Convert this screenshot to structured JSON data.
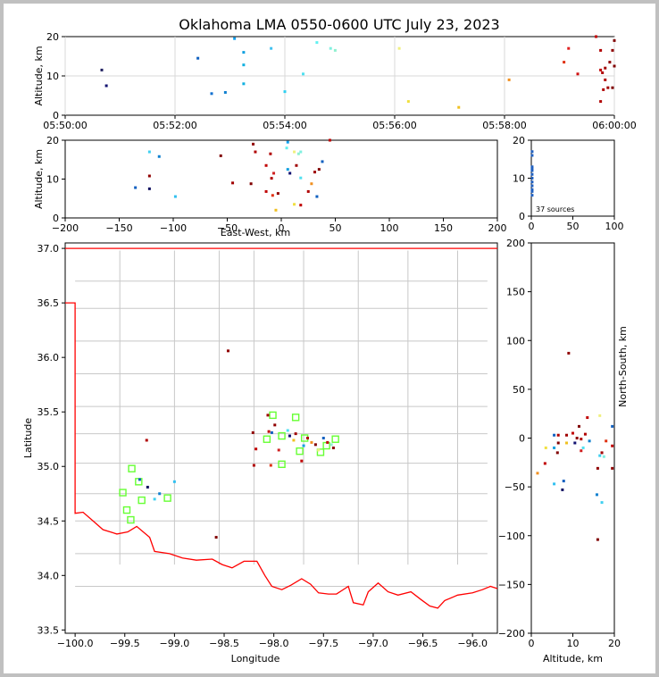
{
  "title": "Oklahoma LMA 0550-0600 UTC July 23, 2023",
  "colors": {
    "boundary": "#ff0000",
    "county": "#c8c8c8",
    "station": "#66ff33"
  },
  "chart_data": [
    {
      "id": "time_altitude",
      "type": "scatter",
      "ylabel": "Altitude, km",
      "ylim": [
        0,
        20
      ],
      "xlim": [
        "05:50:00",
        "06:00:00"
      ],
      "xticks": [
        "05:50:00",
        "05:52:00",
        "05:54:00",
        "05:56:00",
        "05:58:00",
        "06:00:00"
      ],
      "yticks": [
        "0",
        "10",
        "20"
      ],
      "points": [
        {
          "t": "05:50:40",
          "alt": 11.5,
          "color": "#202060"
        },
        {
          "t": "05:50:45",
          "alt": 7.5,
          "color": "#101070"
        },
        {
          "t": "05:52:25",
          "alt": 14.5,
          "color": "#1060c0"
        },
        {
          "t": "05:52:40",
          "alt": 5.5,
          "color": "#1070d0"
        },
        {
          "t": "05:52:55",
          "alt": 5.8,
          "color": "#1080d0"
        },
        {
          "t": "05:53:05",
          "alt": 19.5,
          "color": "#10a0f0"
        },
        {
          "t": "05:53:15",
          "alt": 16,
          "color": "#10a0e0"
        },
        {
          "t": "05:53:15",
          "alt": 12.8,
          "color": "#10b0e0"
        },
        {
          "t": "05:53:15",
          "alt": 8,
          "color": "#10b0e0"
        },
        {
          "t": "05:53:45",
          "alt": 17,
          "color": "#40c0f0"
        },
        {
          "t": "05:54:00",
          "alt": 6,
          "color": "#30d0f0"
        },
        {
          "t": "05:54:20",
          "alt": 10.5,
          "color": "#50e0f0"
        },
        {
          "t": "05:54:35",
          "alt": 18.5,
          "color": "#60f0f0"
        },
        {
          "t": "05:54:50",
          "alt": 17,
          "color": "#80f0e0"
        },
        {
          "t": "05:54:55",
          "alt": 16.5,
          "color": "#90f0d0"
        },
        {
          "t": "05:56:05",
          "alt": 17,
          "color": "#f0f080"
        },
        {
          "t": "05:56:15",
          "alt": 3.5,
          "color": "#f0e040"
        },
        {
          "t": "05:57:10",
          "alt": 2,
          "color": "#f0c020"
        },
        {
          "t": "05:58:05",
          "alt": 9,
          "color": "#f09020"
        },
        {
          "t": "05:59:05",
          "alt": 13.5,
          "color": "#e03010"
        },
        {
          "t": "05:59:10",
          "alt": 17,
          "color": "#e02020"
        },
        {
          "t": "05:59:20",
          "alt": 10.5,
          "color": "#d01010"
        },
        {
          "t": "05:59:40",
          "alt": 20,
          "color": "#c00000"
        },
        {
          "t": "05:59:45",
          "alt": 16.5,
          "color": "#b00000"
        },
        {
          "t": "05:59:45",
          "alt": 11.5,
          "color": "#c00000"
        },
        {
          "t": "05:59:47",
          "alt": 10.8,
          "color": "#b00000"
        },
        {
          "t": "05:59:50",
          "alt": 12,
          "color": "#a00000"
        },
        {
          "t": "05:59:50",
          "alt": 9,
          "color": "#b00000"
        },
        {
          "t": "05:59:45",
          "alt": 3.5,
          "color": "#b00000"
        },
        {
          "t": "05:59:53",
          "alt": 7,
          "color": "#a00000"
        },
        {
          "t": "05:59:55",
          "alt": 13.5,
          "color": "#900000"
        },
        {
          "t": "05:59:58",
          "alt": 16.5,
          "color": "#900000"
        },
        {
          "t": "06:00:00",
          "alt": 19,
          "color": "#800000"
        },
        {
          "t": "06:00:00",
          "alt": 12.5,
          "color": "#800000"
        },
        {
          "t": "05:59:58",
          "alt": 7,
          "color": "#800000"
        },
        {
          "t": "05:59:48",
          "alt": 6.5,
          "color": "#b00000"
        }
      ]
    },
    {
      "id": "ew_altitude",
      "type": "scatter",
      "xlabel": "East-West, km",
      "ylabel": "Altitude, km",
      "xlim": [
        -200,
        200
      ],
      "ylim": [
        0,
        20
      ],
      "xticks": [
        "−200",
        "−150",
        "−100",
        "−50",
        "0",
        "50",
        "100",
        "150",
        "200"
      ],
      "yticks": [
        "0",
        "10",
        "20"
      ],
      "points": [
        {
          "x": -135,
          "alt": 7.8,
          "color": "#1060c0"
        },
        {
          "x": -122,
          "alt": 17,
          "color": "#40d0f0"
        },
        {
          "x": -122,
          "alt": 10.8,
          "color": "#900000"
        },
        {
          "x": -122,
          "alt": 7.5,
          "color": "#101060"
        },
        {
          "x": -113,
          "alt": 15.8,
          "color": "#1080d0"
        },
        {
          "x": -98,
          "alt": 5.5,
          "color": "#30c0f0"
        },
        {
          "x": -56,
          "alt": 16,
          "color": "#800000"
        },
        {
          "x": -45,
          "alt": 9,
          "color": "#a00000"
        },
        {
          "x": -28,
          "alt": 8.8,
          "color": "#800000"
        },
        {
          "x": -26,
          "alt": 19,
          "color": "#900000"
        },
        {
          "x": -24,
          "alt": 17,
          "color": "#b00000"
        },
        {
          "x": -14,
          "alt": 13.5,
          "color": "#c00000"
        },
        {
          "x": -14,
          "alt": 6.8,
          "color": "#c00000"
        },
        {
          "x": -10,
          "alt": 16.5,
          "color": "#b00000"
        },
        {
          "x": -9,
          "alt": 10.2,
          "color": "#b00000"
        },
        {
          "x": -7,
          "alt": 11.5,
          "color": "#d02020"
        },
        {
          "x": -8,
          "alt": 5.8,
          "color": "#e03010"
        },
        {
          "x": -5,
          "alt": 2,
          "color": "#f0c020"
        },
        {
          "x": -3,
          "alt": 6.3,
          "color": "#900000"
        },
        {
          "x": 5,
          "alt": 18,
          "color": "#60f0f0"
        },
        {
          "x": 6,
          "alt": 19.5,
          "color": "#10a0f0"
        },
        {
          "x": 6,
          "alt": 12.5,
          "color": "#10a0e0"
        },
        {
          "x": 8,
          "alt": 11.5,
          "color": "#101070"
        },
        {
          "x": 12,
          "alt": 17,
          "color": "#f0f080"
        },
        {
          "x": 12,
          "alt": 3.5,
          "color": "#f0e040"
        },
        {
          "x": 14,
          "alt": 13.5,
          "color": "#a00000"
        },
        {
          "x": 16,
          "alt": 16.5,
          "color": "#90f0d0"
        },
        {
          "x": 18,
          "alt": 17,
          "color": "#80f0e0"
        },
        {
          "x": 18,
          "alt": 10.3,
          "color": "#50e0f0"
        },
        {
          "x": 18,
          "alt": 3.3,
          "color": "#c00000"
        },
        {
          "x": 25,
          "alt": 6.8,
          "color": "#b00000"
        },
        {
          "x": 28,
          "alt": 8.8,
          "color": "#f09020"
        },
        {
          "x": 31,
          "alt": 11.8,
          "color": "#a00000"
        },
        {
          "x": 33,
          "alt": 5.5,
          "color": "#1060c0"
        },
        {
          "x": 35,
          "alt": 12.5,
          "color": "#800000"
        },
        {
          "x": 38,
          "alt": 14.5,
          "color": "#1060c0"
        },
        {
          "x": 45,
          "alt": 20,
          "color": "#c00000"
        }
      ]
    },
    {
      "id": "altitude_histogram",
      "type": "scatter",
      "xlim": [
        0,
        100
      ],
      "ylim": [
        0,
        20
      ],
      "xticks": [
        "0",
        "50",
        "100"
      ],
      "yticks": [
        "0",
        "10",
        "20"
      ],
      "annotation": "37 sources",
      "points": [
        {
          "count": 1,
          "alt": 7
        },
        {
          "count": 1,
          "alt": 8
        },
        {
          "count": 1,
          "alt": 9
        },
        {
          "count": 1,
          "alt": 10
        },
        {
          "count": 1,
          "alt": 11
        },
        {
          "count": 1,
          "alt": 12
        },
        {
          "count": 1,
          "alt": 13
        },
        {
          "count": 1,
          "alt": 16
        },
        {
          "count": 1,
          "alt": 17
        },
        {
          "count": 1,
          "alt": 5.5
        },
        {
          "count": 1,
          "alt": 6.5
        },
        {
          "count": 1,
          "alt": 12.5
        }
      ]
    },
    {
      "id": "plan_view",
      "type": "scatter",
      "xlabel": "Longitude",
      "ylabel": "Latitude",
      "xlim": [
        -100.1,
        -95.75
      ],
      "ylim": [
        33.47,
        37.05
      ],
      "xticks": [
        "−100.0",
        "−99.5",
        "−99.0",
        "−98.5",
        "−98.0",
        "−97.5",
        "−97.0",
        "−96.5",
        "−96.0"
      ],
      "yticks": [
        "33.5",
        "34.0",
        "34.5",
        "35.0",
        "35.5",
        "36.0",
        "36.5",
        "37.0"
      ],
      "stations": [
        {
          "lon": -99.43,
          "lat": 34.98
        },
        {
          "lon": -99.36,
          "lat": 34.86
        },
        {
          "lon": -99.52,
          "lat": 34.76
        },
        {
          "lon": -99.33,
          "lat": 34.69
        },
        {
          "lon": -99.48,
          "lat": 34.6
        },
        {
          "lon": -99.44,
          "lat": 34.51
        },
        {
          "lon": -99.07,
          "lat": 34.71
        },
        {
          "lon": -98.01,
          "lat": 35.47
        },
        {
          "lon": -97.78,
          "lat": 35.45
        },
        {
          "lon": -97.92,
          "lat": 35.28
        },
        {
          "lon": -98.07,
          "lat": 35.25
        },
        {
          "lon": -97.69,
          "lat": 35.26
        },
        {
          "lon": -97.38,
          "lat": 35.25
        },
        {
          "lon": -97.47,
          "lat": 35.19
        },
        {
          "lon": -97.74,
          "lat": 35.14
        },
        {
          "lon": -97.53,
          "lat": 35.13
        },
        {
          "lon": -97.92,
          "lat": 35.02
        }
      ],
      "points": [
        {
          "lon": -98.46,
          "lat": 36.06,
          "color": "#900000"
        },
        {
          "lon": -99.28,
          "lat": 35.24,
          "color": "#b00000"
        },
        {
          "lon": -99.35,
          "lat": 34.88,
          "color": "#1060c0"
        },
        {
          "lon": -99.27,
          "lat": 34.81,
          "color": "#101060"
        },
        {
          "lon": -99.2,
          "lat": 34.7,
          "color": "#40d0f0"
        },
        {
          "lon": -99.15,
          "lat": 34.75,
          "color": "#1080d0"
        },
        {
          "lon": -99.0,
          "lat": 34.86,
          "color": "#30c0f0"
        },
        {
          "lon": -98.58,
          "lat": 34.35,
          "color": "#800000"
        },
        {
          "lon": -98.21,
          "lat": 35.31,
          "color": "#900000"
        },
        {
          "lon": -98.18,
          "lat": 35.16,
          "color": "#c00000"
        },
        {
          "lon": -98.2,
          "lat": 35.01,
          "color": "#b00000"
        },
        {
          "lon": -98.06,
          "lat": 35.47,
          "color": "#a00000"
        },
        {
          "lon": -98.05,
          "lat": 35.32,
          "color": "#c00000"
        },
        {
          "lon": -98.02,
          "lat": 35.31,
          "color": "#1060c0"
        },
        {
          "lon": -98.03,
          "lat": 35.01,
          "color": "#e03010"
        },
        {
          "lon": -97.99,
          "lat": 35.38,
          "color": "#900000"
        },
        {
          "lon": -97.95,
          "lat": 35.15,
          "color": "#d02020"
        },
        {
          "lon": -97.86,
          "lat": 35.33,
          "color": "#50e0f0"
        },
        {
          "lon": -97.84,
          "lat": 35.28,
          "color": "#101070"
        },
        {
          "lon": -97.8,
          "lat": 35.24,
          "color": "#f0c020"
        },
        {
          "lon": -97.78,
          "lat": 35.3,
          "color": "#a00000"
        },
        {
          "lon": -97.72,
          "lat": 35.05,
          "color": "#c00000"
        },
        {
          "lon": -97.7,
          "lat": 35.19,
          "color": "#10a0e0"
        },
        {
          "lon": -97.66,
          "lat": 35.26,
          "color": "#b00000"
        },
        {
          "lon": -97.62,
          "lat": 35.22,
          "color": "#f09020"
        },
        {
          "lon": -97.58,
          "lat": 35.2,
          "color": "#800000"
        },
        {
          "lon": -97.55,
          "lat": 35.15,
          "color": "#f0f080"
        },
        {
          "lon": -97.5,
          "lat": 35.26,
          "color": "#1060c0"
        },
        {
          "lon": -97.46,
          "lat": 35.22,
          "color": "#c00000"
        },
        {
          "lon": -97.42,
          "lat": 35.2,
          "color": "#90f0d0"
        },
        {
          "lon": -97.4,
          "lat": 35.17,
          "color": "#900000"
        }
      ]
    },
    {
      "id": "altitude_ns",
      "type": "scatter",
      "xlabel": "Altitude, km",
      "ylabel": "North-South, km",
      "xlim": [
        0,
        20
      ],
      "ylim": [
        -200,
        200
      ],
      "xticks": [
        "0",
        "10",
        "20"
      ],
      "yticks": [
        "−200",
        "−150",
        "−100",
        "−50",
        "0",
        "50",
        "100",
        "150",
        "200"
      ],
      "points": [
        {
          "alt": 9,
          "y": 87,
          "color": "#900000"
        },
        {
          "alt": 13.5,
          "y": 21,
          "color": "#c00000"
        },
        {
          "alt": 16.5,
          "y": 23,
          "color": "#f0f080"
        },
        {
          "alt": 11.5,
          "y": 12,
          "color": "#800000"
        },
        {
          "alt": 19.5,
          "y": 12,
          "color": "#1060c0"
        },
        {
          "alt": 5.5,
          "y": 3,
          "color": "#1060c0"
        },
        {
          "alt": 6.5,
          "y": 3,
          "color": "#b00000"
        },
        {
          "alt": 8.5,
          "y": 3,
          "color": "#a00000"
        },
        {
          "alt": 10,
          "y": 5,
          "color": "#c00000"
        },
        {
          "alt": 13,
          "y": 4,
          "color": "#b00000"
        },
        {
          "alt": 11,
          "y": 0,
          "color": "#900000"
        },
        {
          "alt": 12,
          "y": -1,
          "color": "#b00000"
        },
        {
          "alt": 14,
          "y": -3,
          "color": "#1080d0"
        },
        {
          "alt": 6.5,
          "y": -5,
          "color": "#800000"
        },
        {
          "alt": 8.5,
          "y": -5,
          "color": "#f0c020"
        },
        {
          "alt": 10.5,
          "y": -5,
          "color": "#101070"
        },
        {
          "alt": 3.5,
          "y": -10,
          "color": "#f0e040"
        },
        {
          "alt": 5.5,
          "y": -10,
          "color": "#10a0e0"
        },
        {
          "alt": 12.5,
          "y": -10,
          "color": "#50e0f0"
        },
        {
          "alt": 12,
          "y": -13,
          "color": "#d02020"
        },
        {
          "alt": 6.3,
          "y": -15,
          "color": "#800000"
        },
        {
          "alt": 17,
          "y": -15,
          "color": "#a00000"
        },
        {
          "alt": 16.5,
          "y": -18,
          "color": "#40d0f0"
        },
        {
          "alt": 17.5,
          "y": -19,
          "color": "#80f0e0"
        },
        {
          "alt": 3.3,
          "y": -26,
          "color": "#c00000"
        },
        {
          "alt": 16,
          "y": -31,
          "color": "#900000"
        },
        {
          "alt": 19.5,
          "y": -31,
          "color": "#900000"
        },
        {
          "alt": 1.5,
          "y": -36,
          "color": "#f09020"
        },
        {
          "alt": 5.5,
          "y": -47,
          "color": "#30c0f0"
        },
        {
          "alt": 7.8,
          "y": -44,
          "color": "#1060c0"
        },
        {
          "alt": 7.5,
          "y": -53,
          "color": "#101060"
        },
        {
          "alt": 15.8,
          "y": -58,
          "color": "#1080d0"
        },
        {
          "alt": 17,
          "y": -66,
          "color": "#40d0f0"
        },
        {
          "alt": 16,
          "y": -104,
          "color": "#800000"
        },
        {
          "alt": 19.5,
          "y": -8,
          "color": "#c00000"
        },
        {
          "alt": 18,
          "y": -3,
          "color": "#e03010"
        }
      ]
    }
  ]
}
